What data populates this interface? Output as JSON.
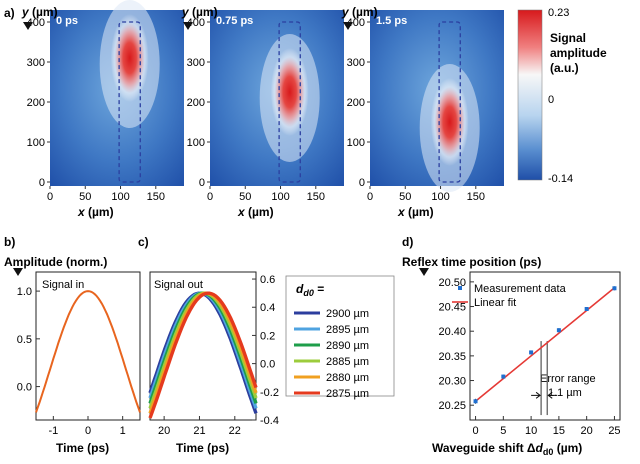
{
  "panel_labels": {
    "a": "a)",
    "b": "b)",
    "c": "c)",
    "d": "d)"
  },
  "colors": {
    "heat_low": "#1f4fa8",
    "heat_mid": "#f7f7f7",
    "heat_high": "#d7191c",
    "plateau": "#6ea6dc",
    "waveguide_outline": "#2b3fa0",
    "signal_in": "#e8651f",
    "measurement": "#1f6fd0",
    "fit": "#e53935",
    "error_bar": "#555555"
  },
  "chart_data": [
    {
      "type": "heatmap",
      "panel": "a",
      "xlabel": "x (µm)",
      "ylabel": "y (µm)",
      "xlim": [
        0,
        190
      ],
      "ylim": [
        -10,
        430
      ],
      "xticks": [
        "0",
        "50",
        "100",
        "150"
      ],
      "xtick_values": [
        0,
        50,
        100,
        150
      ],
      "yticks": [
        "0",
        "100",
        "200",
        "300",
        "400"
      ],
      "ytick_values": [
        0,
        100,
        200,
        300,
        400
      ],
      "waveguide": {
        "x": [
          98,
          128
        ],
        "y": [
          0,
          400
        ]
      },
      "maps": [
        {
          "label": "0 ps",
          "hotspot_x": 113,
          "hotspot_y": 310,
          "peak": 0.23
        },
        {
          "label": "0.75 ps",
          "hotspot_x": 113,
          "hotspot_y": 225,
          "peak": 0.22
        },
        {
          "label": "1.5 ps",
          "hotspot_x": 113,
          "hotspot_y": 150,
          "peak": 0.21
        }
      ],
      "colorbar": {
        "title": [
          "Signal",
          "amplitude",
          "(a.u.)"
        ],
        "max_label": "0.23",
        "mid_label": "0",
        "min_label": "-0.14",
        "range": [
          -0.14,
          0.23
        ]
      }
    },
    {
      "type": "line",
      "panel": "b",
      "ylabel": "Amplitude (norm.)",
      "xlabel": "Time (ps)",
      "inset_label": "Signal in",
      "xlim": [
        -1.5,
        1.5
      ],
      "ylim": [
        -0.35,
        1.2
      ],
      "xticks": [
        "-1",
        "0",
        "1"
      ],
      "xtick_values": [
        -1,
        0,
        1
      ],
      "yticks": [
        "0.0",
        "0.5",
        "1.0"
      ],
      "ytick_values": [
        0,
        0.5,
        1.0
      ],
      "series": [
        {
          "x": [
            -1.5,
            -1.2,
            -0.9,
            -0.6,
            -0.3,
            0,
            0.3,
            0.6,
            0.9,
            1.2,
            1.5
          ],
          "values": [
            -0.16,
            0.0,
            0.25,
            0.58,
            0.88,
            1.0,
            0.88,
            0.58,
            0.25,
            0.0,
            -0.16
          ]
        }
      ]
    },
    {
      "type": "line",
      "panel": "c",
      "xlabel": "Time (ps)",
      "inset_label": "Signal out",
      "xlim": [
        19.6,
        22.6
      ],
      "ylim": [
        -0.4,
        0.65
      ],
      "xticks": [
        "20",
        "21",
        "22"
      ],
      "xtick_values": [
        20,
        21,
        22
      ],
      "yticks": [
        "0.6",
        "0.4",
        "0.2",
        "0.0",
        "-0.2",
        "-0.4"
      ],
      "ytick_values": [
        0.6,
        0.4,
        0.2,
        0.0,
        -0.2,
        -0.4
      ],
      "legend_title": "d_d0 =",
      "series": [
        {
          "name": "2900 µm",
          "color": "#2c3e9e",
          "center": 21.0,
          "peak": 0.5
        },
        {
          "name": "2895 µm",
          "color": "#4fa3e0",
          "center": 21.05,
          "peak": 0.5
        },
        {
          "name": "2890 µm",
          "color": "#1e9e4a",
          "center": 21.1,
          "peak": 0.5
        },
        {
          "name": "2885 µm",
          "color": "#9ccc3c",
          "center": 21.15,
          "peak": 0.5
        },
        {
          "name": "2880 µm",
          "color": "#f0a020",
          "center": 21.2,
          "peak": 0.5
        },
        {
          "name": "2875 µm",
          "color": "#e53a1e",
          "center": 21.25,
          "peak": 0.5
        }
      ]
    },
    {
      "type": "scatter",
      "panel": "d",
      "ylabel": "Reflex time position (ps)",
      "xlabel": "Waveguide shift Δd_d0 (µm)",
      "xlim": [
        -1,
        26
      ],
      "ylim": [
        20.22,
        20.52
      ],
      "xticks": [
        "0",
        "5",
        "10",
        "15",
        "20",
        "25"
      ],
      "xtick_values": [
        0,
        5,
        10,
        15,
        20,
        25
      ],
      "yticks": [
        "20.50",
        "20.45",
        "20.40",
        "20.35",
        "20.30",
        "20.25"
      ],
      "ytick_values": [
        20.5,
        20.45,
        20.4,
        20.35,
        20.3,
        20.25
      ],
      "legend": [
        "Measurement data",
        "Linear fit"
      ],
      "series": [
        {
          "name": "Measurement data",
          "x": [
            0,
            5,
            10,
            15,
            20,
            25
          ],
          "values": [
            20.258,
            20.308,
            20.357,
            20.402,
            20.445,
            20.487
          ],
          "error": [
            0.005,
            0.004,
            0.004,
            0.004,
            0.004,
            0.004
          ]
        },
        {
          "name": "Linear fit",
          "x": [
            0,
            25
          ],
          "values": [
            20.258,
            20.488
          ]
        }
      ],
      "annotation": {
        "lines": [
          "Error range",
          "1.1 µm"
        ],
        "x": [
          11.8,
          12.9
        ],
        "y_range": [
          20.23,
          20.38
        ]
      }
    }
  ]
}
